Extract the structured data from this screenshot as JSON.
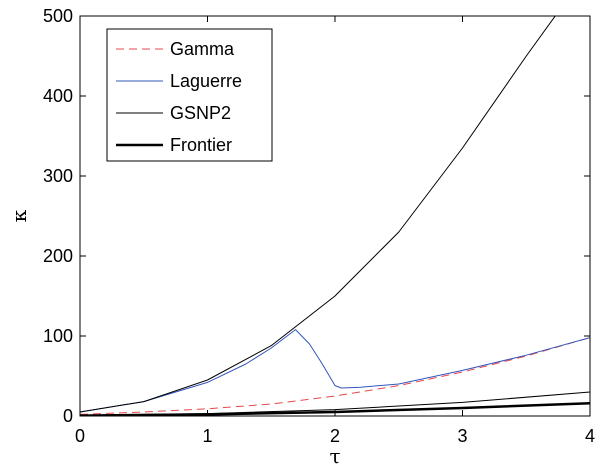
{
  "chart_data": {
    "type": "line",
    "xlabel": "τ",
    "ylabel": "κ",
    "xlim": [
      0,
      4
    ],
    "ylim": [
      0,
      500
    ],
    "xticks": [
      0,
      1,
      2,
      3,
      4
    ],
    "yticks": [
      0,
      100,
      200,
      300,
      400,
      500
    ],
    "xtick_labels": [
      "0",
      "1",
      "2",
      "3",
      "4"
    ],
    "ytick_labels": [
      "0",
      "100",
      "200",
      "300",
      "400",
      "500"
    ],
    "grid": false,
    "legend_position": "top-left",
    "series": [
      {
        "name": "Gamma",
        "color": "#e8474c",
        "style": "dashed",
        "width": 1,
        "x": [
          0,
          0.5,
          1.0,
          1.5,
          2.0,
          2.5,
          3.0,
          3.5,
          4.0
        ],
        "y": [
          2,
          5,
          9,
          15,
          25,
          38,
          55,
          75,
          98
        ]
      },
      {
        "name": "Laguerre",
        "color": "#3355bb",
        "style": "solid",
        "width": 1,
        "x": [
          0,
          0.5,
          1.0,
          1.3,
          1.5,
          1.69,
          1.8,
          1.9,
          2.0,
          2.05,
          2.2,
          2.5,
          3.0,
          3.5,
          4.0
        ],
        "y": [
          5,
          18,
          42,
          65,
          85,
          108,
          90,
          65,
          38,
          35,
          36,
          40,
          57,
          76,
          98
        ]
      },
      {
        "name": "GSNP2",
        "color": "#000000",
        "style": "solid",
        "width": 1,
        "x": [
          0,
          0.5,
          1.0,
          1.5,
          2.0,
          2.5,
          3.0,
          3.5,
          3.75
        ],
        "y": [
          5,
          18,
          45,
          88,
          150,
          230,
          335,
          450,
          505
        ]
      },
      {
        "name": "",
        "color": "#000000",
        "style": "solid",
        "width": 1,
        "x": [
          0,
          1,
          2,
          3,
          4
        ],
        "y": [
          1,
          3,
          8,
          17,
          30
        ]
      },
      {
        "name": "Frontier",
        "color": "#000000",
        "style": "solid",
        "width": 2.5,
        "x": [
          0,
          1,
          2,
          3,
          4
        ],
        "y": [
          0.5,
          2,
          5,
          10,
          16
        ]
      }
    ],
    "legend": [
      "Gamma",
      "Laguerre",
      "GSNP2",
      "Frontier"
    ]
  }
}
